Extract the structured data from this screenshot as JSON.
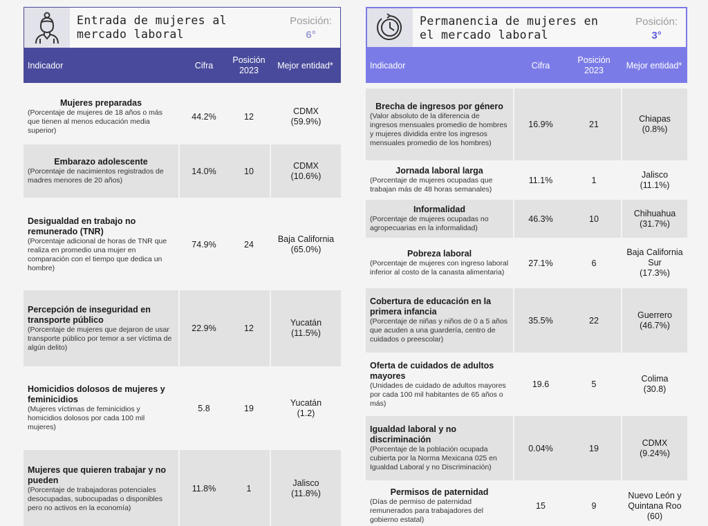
{
  "left": {
    "title": "Entrada de mujeres al\nmercado laboral",
    "icon": "woman-icon",
    "rank_label": "Posición:",
    "rank_value": "6°",
    "accent": "#4a4a9c",
    "rank_color": "#9c9cd8",
    "columns": [
      "Indicador",
      "Cifra",
      "Posición\n2023",
      "Mejor entidad*"
    ],
    "rows": [
      {
        "title": "Mujeres preparadas",
        "desc": "(Porcentaje de mujeres de 18 años o más que tienen al menos educación media superior)",
        "cifra": "44.2%",
        "pos": "12",
        "best": "CDMX\n(59.9%)",
        "h": 80,
        "shaded": false
      },
      {
        "title": "Embarazo adolescente",
        "desc": "(Porcentaje de nacimientos registrados de madres menores de 20 años)",
        "cifra": "14.0%",
        "pos": "10",
        "best": "CDMX\n(10.6%)",
        "h": 77,
        "shaded": true
      },
      {
        "title": "Desigualdad en trabajo no remunerado (TNR)",
        "desc": "(Porcentaje adicional de horas de TNR que realiza en promedio una mujer en comparación con el tiempo que dedica un hombre)",
        "cifra": "74.9%",
        "pos": "24",
        "best": "Baja California\n(65.0%)",
        "h": 132,
        "shaded": false
      },
      {
        "title": "Percepción de inseguridad en transporte público",
        "desc": "(Porcentaje de mujeres que dejaron de usar transporte público por temor a ser víctima de algún delito)",
        "cifra": "22.9%",
        "pos": "12",
        "best": "Yucatán\n(11.5%)",
        "h": 110,
        "shaded": true
      },
      {
        "title": "Homicidios dolosos de mujeres y feminicidios",
        "desc": "(Mujeres víctimas de feminicidios y homicidios dolosos por cada 100 mil mujeres)",
        "cifra": "5.8",
        "pos": "19",
        "best": "Yucatán\n(1.2)",
        "h": 121,
        "shaded": false
      },
      {
        "title": "Mujeres que quieren trabajar y no pueden",
        "desc": "(Porcentaje de trabajadoras potenciales desocupadas, subocupadas o disponibles pero no activos en la economía)",
        "cifra": "11.8%",
        "pos": "1",
        "best": "Jalisco\n(11.8%)",
        "h": 112,
        "shaded": true
      }
    ]
  },
  "right": {
    "title": "Permanencia de mujeres en\nel mercado laboral",
    "icon": "clock-icon",
    "rank_label": "Posición:",
    "rank_value": "3°",
    "accent": "#7b7be8",
    "rank_color": "#5d5de0",
    "columns": [
      "Indicador",
      "Cifra",
      "Posición\n2023",
      "Mejor entidad*"
    ],
    "rows": [
      {
        "title": "Brecha de ingresos por género",
        "desc": "(Valor absoluto de la diferencia de ingresos mensuales promedio de hombres y mujeres dividida entre los ingresos mensuales promedio de los hombres)",
        "cifra": "16.9%",
        "pos": "21",
        "best": "Chiapas\n(0.8%)",
        "h": 104,
        "shaded": true
      },
      {
        "title": "Jornada laboral larga",
        "desc": "(Porcentaje de mujeres ocupadas que trabajan más de 48 horas semanales)",
        "cifra": "11.1%",
        "pos": "1",
        "best": "Jalisco\n(11.1%)",
        "h": 57,
        "shaded": false
      },
      {
        "title": "Informalidad",
        "desc": "(Porcentaje de mujeres ocupadas no agropecuarias en la informalidad)",
        "cifra": "46.3%",
        "pos": "10",
        "best": "Chihuahua\n(31.7%)",
        "h": 55,
        "shaded": true
      },
      {
        "title": "Pobreza laboral",
        "desc": "(Porcentaje de mujeres con ingreso laboral inferior al costo de la canasta alimentaria)",
        "cifra": "27.1%",
        "pos": "6",
        "best": "Baja California\nSur\n(17.3%)",
        "h": 73,
        "shaded": false
      },
      {
        "title": "Cobertura de educación en la primera infancia",
        "desc": "(Porcentaje de niñas y niños de 0 a 5 años que acuden a una guardería, centro de cuidados o preescolar)",
        "cifra": "35.5%",
        "pos": "22",
        "best": "Guerrero\n(46.7%)",
        "h": 93,
        "shaded": true
      },
      {
        "title": "Oferta de cuidados de adultos mayores",
        "desc": "(Unidades de cuidado de adultos mayores por cada 100 mil habitantes de 65 años o más)",
        "cifra": "19.6",
        "pos": "5",
        "best": "Colima\n(30.8)",
        "h": 92,
        "shaded": false
      },
      {
        "title": "Igualdad laboral y no discriminación",
        "desc": "(Porcentaje de la población ocupada cubierta por la Norma Mexicana 025 en Igualdad Laboral y no Discriminación)",
        "cifra": "0.04%",
        "pos": "19",
        "best": "CDMX\n(9.24%)",
        "h": 93,
        "shaded": true
      },
      {
        "title": "Permisos de paternidad",
        "desc": "(Días de permiso de paternidad remunerados para trabajadores del gobierno estatal)",
        "cifra": "15",
        "pos": "9",
        "best": "Nuevo León y\nQuintana Roo\n(60)",
        "h": 74,
        "shaded": false
      }
    ]
  }
}
